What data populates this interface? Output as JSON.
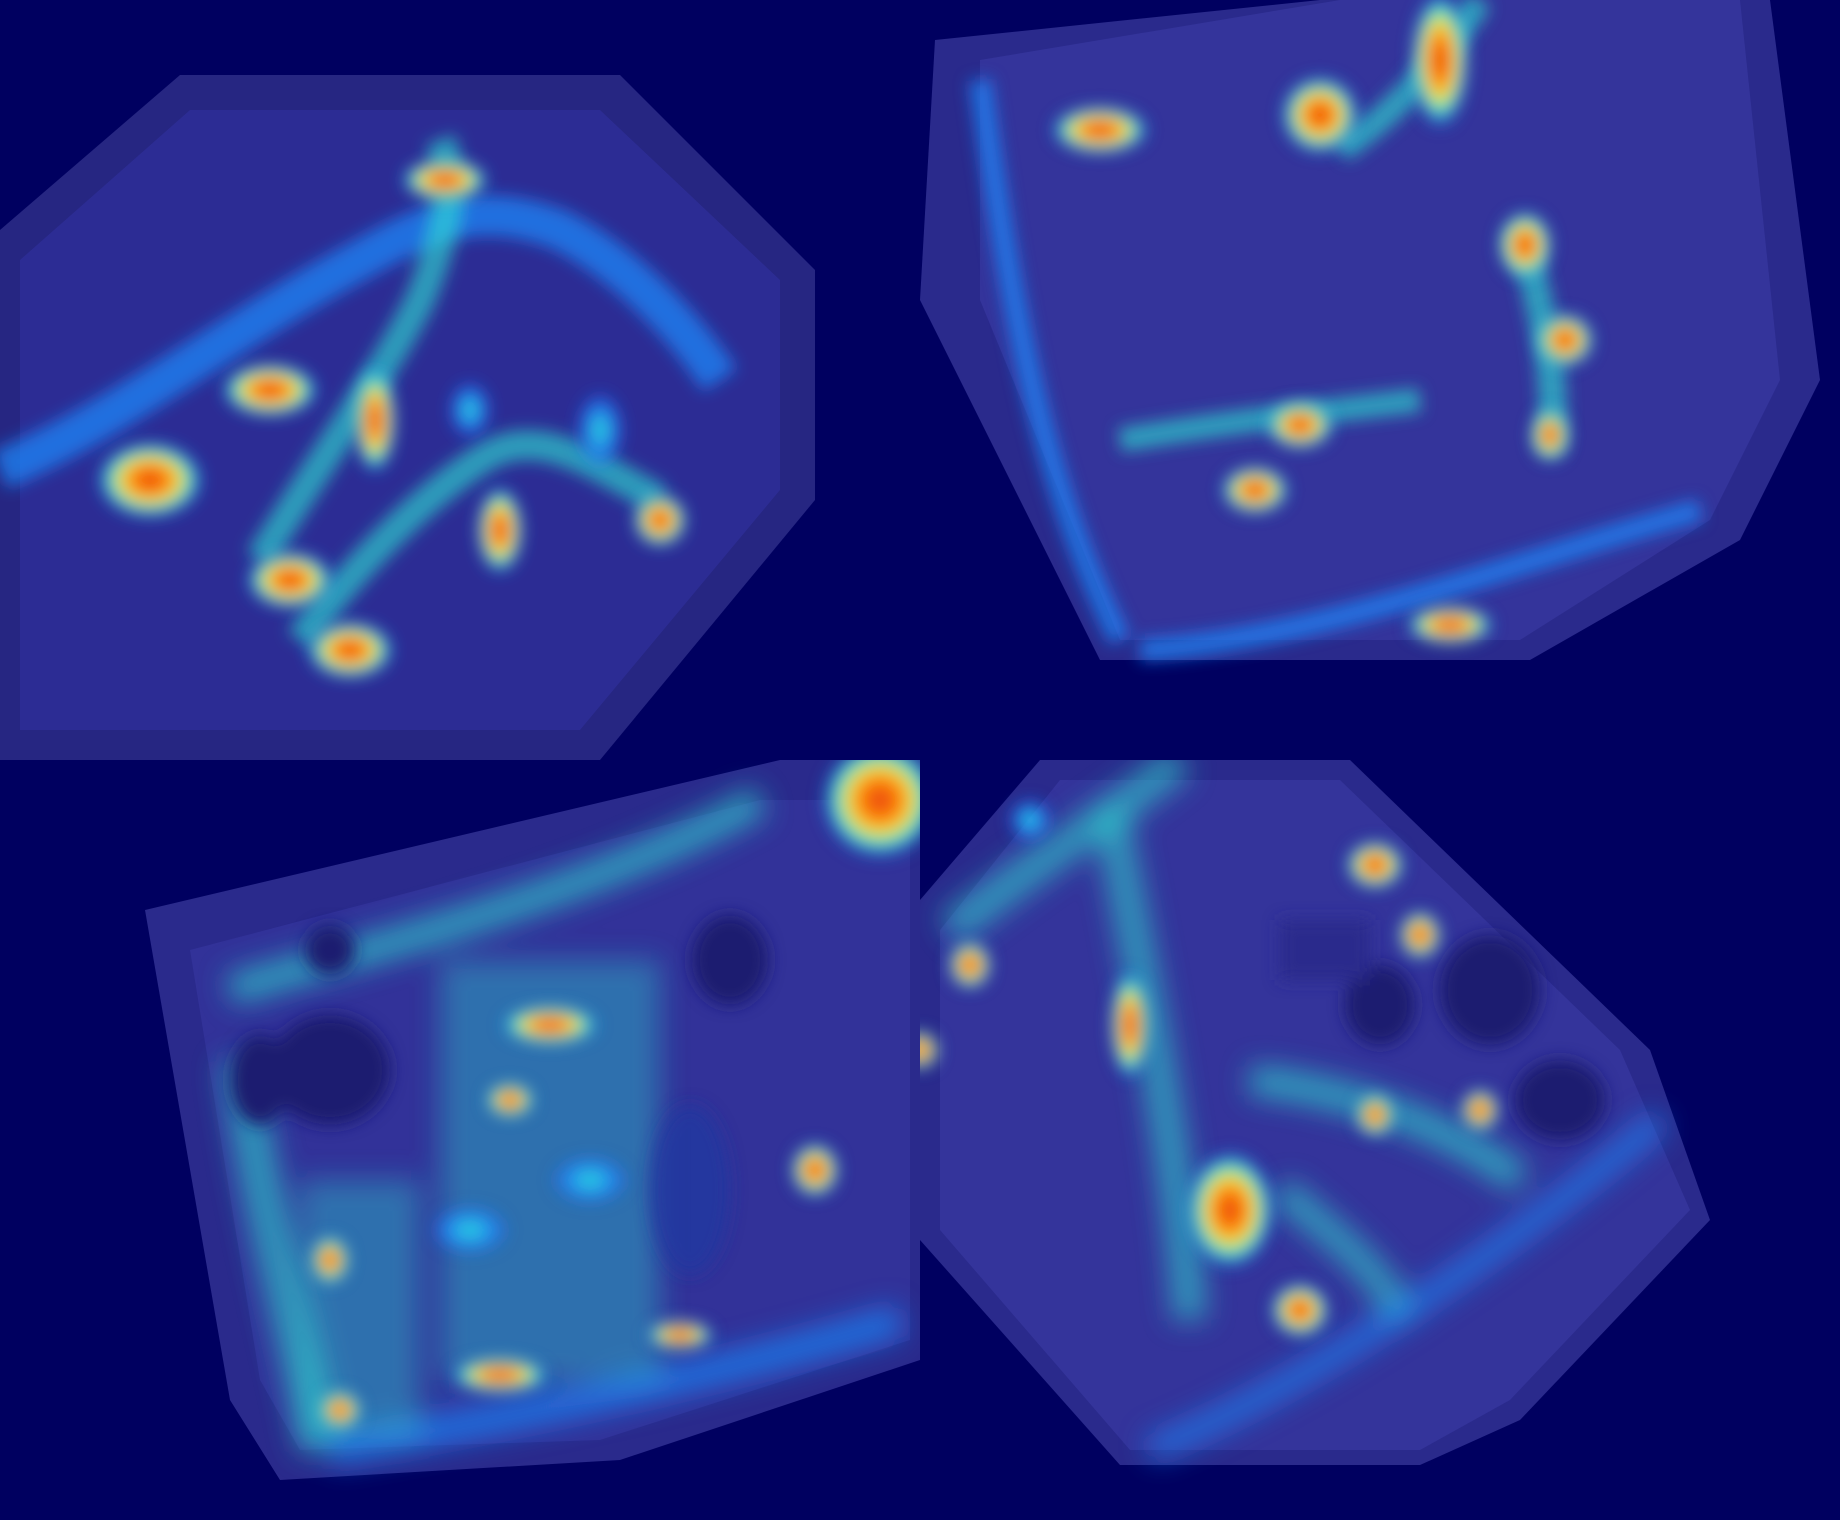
{
  "image": {
    "panels": [
      {
        "id": "top-left"
      },
      {
        "id": "top-right"
      },
      {
        "id": "bottom-left"
      },
      {
        "id": "bottom-right"
      }
    ],
    "colors": {
      "background": "#000060",
      "room_floor": "#2b2b8f",
      "heat_low": "#1e50ff",
      "heat_mid": "#2ee6d6",
      "heat_warm": "#f0e040",
      "heat_high": "#ff7a00",
      "heat_peak": "#e83a10"
    }
  }
}
